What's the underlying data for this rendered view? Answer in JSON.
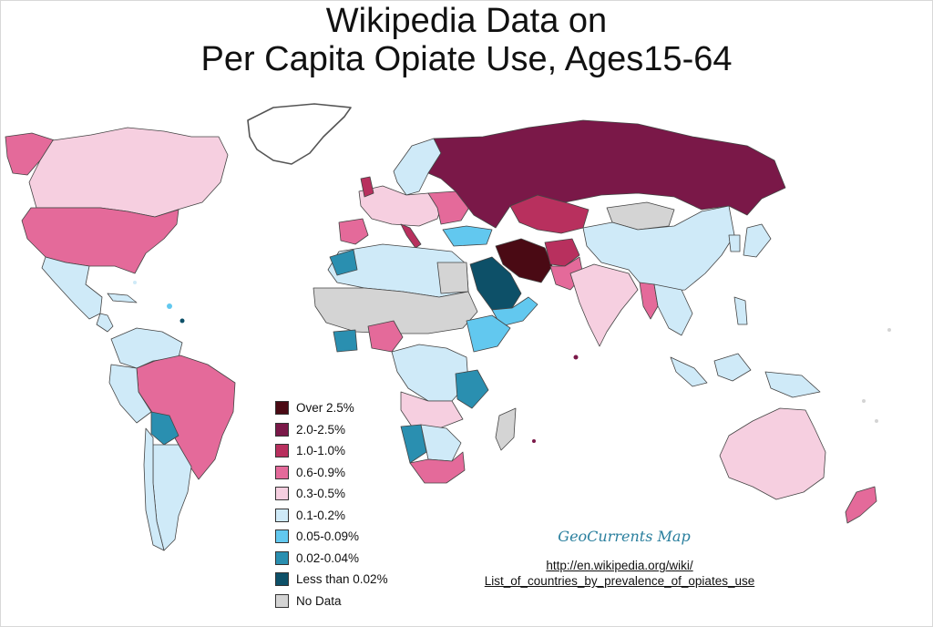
{
  "title": {
    "line1": "Wikipedia Data on",
    "line2": "Per Capita Opiate Use, Ages15-64"
  },
  "legend": [
    {
      "label": "Over 2.5%",
      "color": "#4a0a14"
    },
    {
      "label": "2.0-2.5%",
      "color": "#7a1848"
    },
    {
      "label": "1.0-1.0%",
      "color": "#b8305e"
    },
    {
      "label": "0.6-0.9%",
      "color": "#e46a9a"
    },
    {
      "label": "0.3-0.5%",
      "color": "#f6cfe0"
    },
    {
      "label": "0.1-0.2%",
      "color": "#cfeaf8"
    },
    {
      "label": "0.05-0.09%",
      "color": "#62c8ef"
    },
    {
      "label": "0.02-0.04%",
      "color": "#2a8fb0"
    },
    {
      "label": "Less than 0.02%",
      "color": "#0d5068"
    },
    {
      "label": "No Data",
      "color": "#d4d4d4"
    }
  ],
  "credit": "GeoCurrents Map",
  "source": {
    "line1": "http://en.wikipedia.org/wiki/",
    "line2": "List_of_countries_by_prevalence_of_opiates_use"
  }
}
